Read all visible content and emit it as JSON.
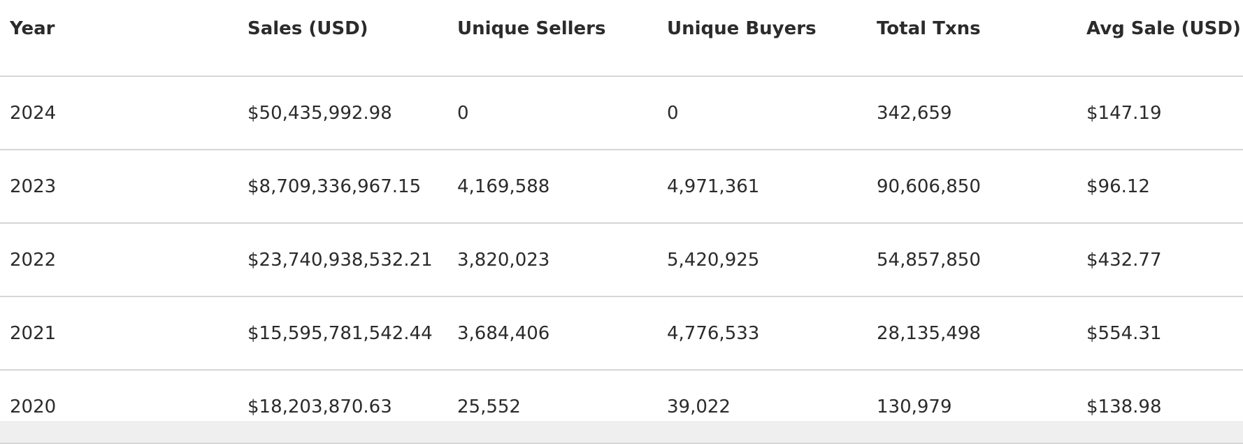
{
  "table": {
    "headers": [
      "Year",
      "Sales (USD)",
      "Unique Sellers",
      "Unique Buyers",
      "Total Txns",
      "Avg Sale (USD)"
    ],
    "rows": [
      [
        "2024",
        "$50,435,992.98",
        "0",
        "0",
        "342,659",
        "$147.19"
      ],
      [
        "2023",
        "$8,709,336,967.15",
        "4,169,588",
        "4,971,361",
        "90,606,850",
        "$96.12"
      ],
      [
        "2022",
        "$23,740,938,532.21",
        "3,820,023",
        "5,420,925",
        "54,857,850",
        "$432.77"
      ],
      [
        "2021",
        "$15,595,781,542.44",
        "3,684,406",
        "4,776,533",
        "28,135,498",
        "$554.31"
      ],
      [
        "2020",
        "$18,203,870.63",
        "25,552",
        "39,022",
        "130,979",
        "$138.98"
      ]
    ]
  }
}
